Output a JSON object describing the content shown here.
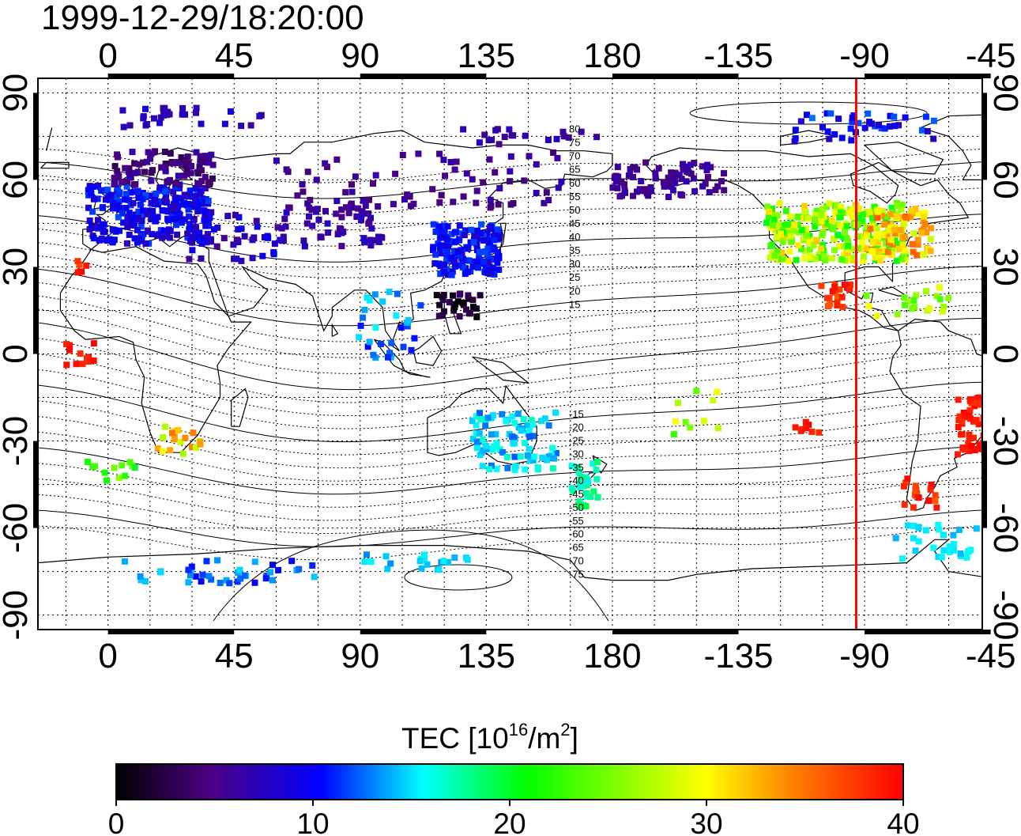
{
  "timestamp": "1999-12-29/18:20:00",
  "map": {
    "lon_ticks": [
      "0",
      "45",
      "90",
      "135",
      "180",
      "-135",
      "-90",
      "-45"
    ],
    "lat_ticks": [
      "90",
      "60",
      "30",
      "0",
      "-30",
      "-60",
      "-90"
    ],
    "lon_range": [
      -25,
      312
    ],
    "lat_range": [
      -95,
      95
    ],
    "grid": "dotted every 15 degrees",
    "terminator_lon": -93,
    "terminator_color": "#ff0000"
  },
  "contour_labels": [
    "80",
    "75",
    "70",
    "65",
    "60",
    "55",
    "50",
    "45",
    "40",
    "35",
    "30",
    "25",
    "20",
    "15",
    "-15",
    "-20",
    "-25",
    "-30",
    "-35",
    "-40",
    "-45",
    "-50",
    "-55",
    "-60",
    "-65",
    "-70",
    "-75"
  ],
  "colorbar": {
    "title_main": "TEC  [10",
    "title_sup1": "16",
    "title_mid": "/m",
    "title_sup2": "2",
    "title_end": "]",
    "ticks": [
      "0",
      "10",
      "20",
      "30",
      "40"
    ],
    "min": 0,
    "max": 40,
    "stops": [
      "#000000",
      "#4b0082",
      "#0000ff",
      "#00ffff",
      "#00ff00",
      "#ffff00",
      "#ff8000",
      "#ff0000"
    ]
  }
}
